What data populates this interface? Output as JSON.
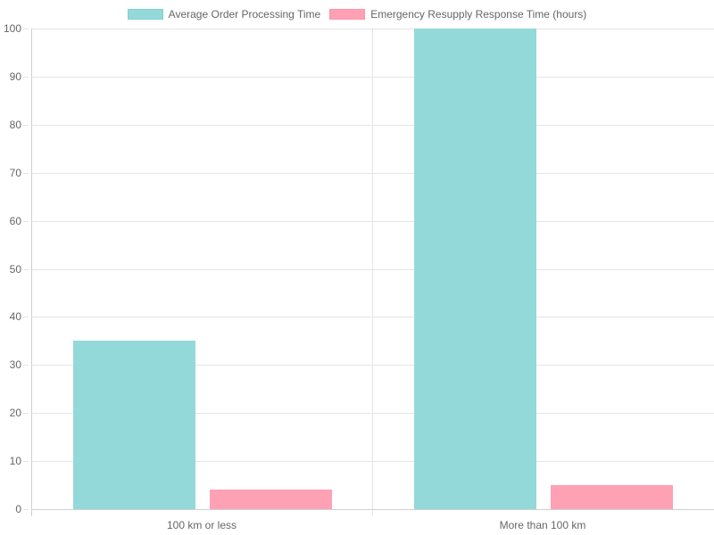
{
  "chart_data": {
    "type": "bar",
    "title": "",
    "categories": [
      "100 km or less",
      "More than 100 km"
    ],
    "series": [
      {
        "name": "Average Order Processing Time",
        "values": [
          35,
          100
        ],
        "color": "#94d9d9",
        "border": "#7fd0d0"
      },
      {
        "name": "Emergency Resupply Response Time (hours)",
        "values": [
          4,
          5
        ],
        "color": "#ffa1b4",
        "border": "#ff94a9"
      }
    ],
    "xlabel": "",
    "ylabel": "",
    "ylim": [
      0,
      100
    ],
    "yticks": [
      0,
      10,
      20,
      30,
      40,
      50,
      60,
      70,
      80,
      90,
      100
    ],
    "grid": true,
    "legend_position": "top"
  },
  "legend": {
    "items": [
      {
        "label": "Average Order Processing Time"
      },
      {
        "label": "Emergency Resupply Response Time (hours)"
      }
    ]
  },
  "axes": {
    "y_labels": [
      "0",
      "10",
      "20",
      "30",
      "40",
      "50",
      "60",
      "70",
      "80",
      "90",
      "100"
    ],
    "x_labels": [
      "100 km or less",
      "More than 100 km"
    ]
  }
}
